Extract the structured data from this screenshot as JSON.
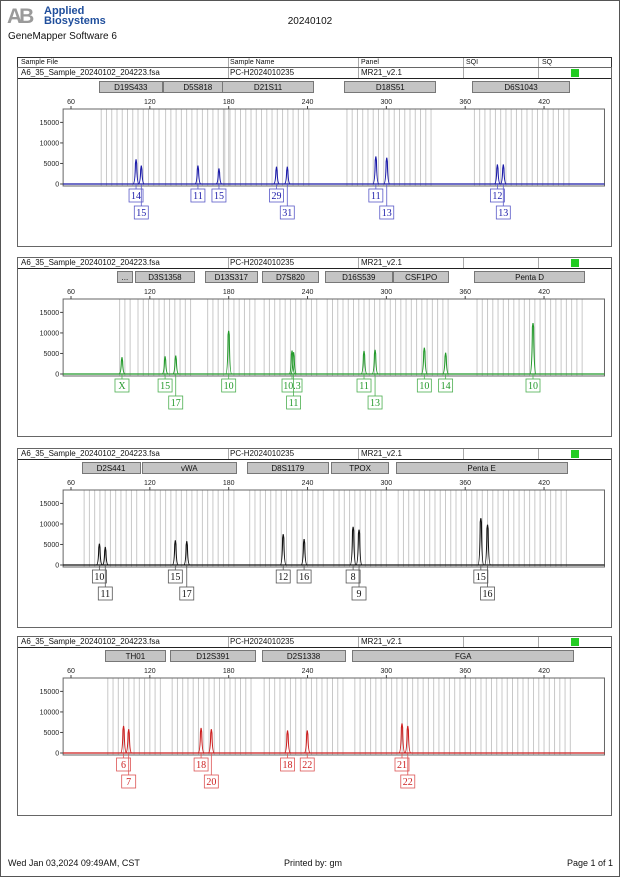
{
  "header": {
    "logo_mark": "AB",
    "logo_line1": "Applied",
    "logo_line2": "Biosystems",
    "software": "GeneMapper Software 6",
    "title": "20240102"
  },
  "columns": [
    "Sample File",
    "Sample Name",
    "Panel",
    "SQI",
    "SQ"
  ],
  "footer": {
    "date": "Wed Jan 03,2024 09:49AM, CST",
    "printed_by": "Printed by: gm",
    "page": "Page 1 of 1"
  },
  "colors": {
    "blue": "#1a1aa8",
    "green": "#22992a",
    "black": "#111111",
    "red": "#cc1f1f",
    "sq_ok": "#22cc22",
    "bin": "#c8c8c8"
  },
  "chart_data": [
    {
      "type": "line",
      "sample_file": "A6_35_Sample_20240102_204223.fsa",
      "sample_name": "PC-H2024010235",
      "panel": "MR21_v2.1",
      "dye": "blue",
      "xlim": [
        54,
        466
      ],
      "ylim": [
        0,
        18750
      ],
      "x_ticks": [
        60,
        120,
        180,
        240,
        300,
        360,
        420
      ],
      "y_ticks": [
        0,
        5000,
        10000,
        15000
      ],
      "markers": [
        {
          "name": "D19S433",
          "range": [
            81,
            130
          ]
        },
        {
          "name": "D5S818",
          "range": [
            130,
            183
          ]
        },
        {
          "name": "D21S11",
          "range": [
            175,
            245
          ]
        },
        {
          "name": "D18S51",
          "range": [
            268,
            338
          ]
        },
        {
          "name": "D6S1043",
          "range": [
            365,
            440
          ]
        }
      ],
      "peaks": [
        {
          "allele": "14",
          "size": 109.5,
          "height": 6000
        },
        {
          "allele": "15",
          "size": 113.5,
          "height": 4500
        },
        {
          "allele": "11",
          "size": 156.6,
          "height": 4500
        },
        {
          "allele": "15",
          "size": 172.6,
          "height": 3800
        },
        {
          "allele": "29",
          "size": 216.4,
          "height": 4200
        },
        {
          "allele": "31",
          "size": 224.6,
          "height": 4200
        },
        {
          "allele": "11",
          "size": 292,
          "height": 6700
        },
        {
          "allele": "13",
          "size": 300.3,
          "height": 6400
        },
        {
          "allele": "12",
          "size": 384.5,
          "height": 4750
        },
        {
          "allele": "13",
          "size": 389,
          "height": 4750
        }
      ]
    },
    {
      "type": "line",
      "sample_file": "A6_35_Sample_20240102_204223.fsa",
      "sample_name": "PC-H2024010235",
      "panel": "MR21_v2.1",
      "dye": "green",
      "xlim": [
        54,
        466
      ],
      "ylim": [
        0,
        18750
      ],
      "x_ticks": [
        60,
        120,
        180,
        240,
        300,
        360,
        420
      ],
      "y_ticks": [
        0,
        5000,
        10000,
        15000
      ],
      "markers": [
        {
          "name": "...",
          "range": [
            95,
            107
          ]
        },
        {
          "name": "D3S1358",
          "range": [
            109,
            154
          ]
        },
        {
          "name": "D13S317",
          "range": [
            162,
            202
          ]
        },
        {
          "name": "D7S820",
          "range": [
            205,
            249
          ]
        },
        {
          "name": "D16S539",
          "range": [
            253,
            305
          ]
        },
        {
          "name": "CSF1PO",
          "range": [
            305,
            348
          ]
        },
        {
          "name": "Penta D",
          "range": [
            367,
            451
          ]
        }
      ],
      "peaks": [
        {
          "allele": "X",
          "size": 98.8,
          "height": 4100
        },
        {
          "allele": "15",
          "size": 131.6,
          "height": 4300
        },
        {
          "allele": "17",
          "size": 139.7,
          "height": 4500
        },
        {
          "allele": "10",
          "size": 180,
          "height": 10500
        },
        {
          "allele": "10.3",
          "size": 228.2,
          "height": 5700
        },
        {
          "allele": "11",
          "size": 229.4,
          "height": 5300
        },
        {
          "allele": "11",
          "size": 283,
          "height": 5600
        },
        {
          "allele": "13",
          "size": 291.4,
          "height": 5900
        },
        {
          "allele": "10",
          "size": 328.9,
          "height": 6400
        },
        {
          "allele": "14",
          "size": 345.1,
          "height": 5200
        },
        {
          "allele": "10",
          "size": 411.6,
          "height": 12400
        }
      ]
    },
    {
      "type": "line",
      "sample_file": "A6_35_Sample_20240102_204223.fsa",
      "sample_name": "PC-H2024010235",
      "panel": "MR21_v2.1",
      "dye": "black",
      "xlim": [
        54,
        466
      ],
      "ylim": [
        0,
        18750
      ],
      "x_ticks": [
        60,
        120,
        180,
        240,
        300,
        360,
        420
      ],
      "y_ticks": [
        0,
        5000,
        10000,
        15000
      ],
      "markers": [
        {
          "name": "D2S441",
          "range": [
            68,
            113
          ]
        },
        {
          "name": "vWA",
          "range": [
            114,
            186
          ]
        },
        {
          "name": "D8S1179",
          "range": [
            194,
            256
          ]
        },
        {
          "name": "TPOX",
          "range": [
            258,
            302
          ]
        },
        {
          "name": "Penta E",
          "range": [
            307,
            438
          ]
        }
      ],
      "peaks": [
        {
          "allele": "10",
          "size": 81.6,
          "height": 5200
        },
        {
          "allele": "11",
          "size": 86.1,
          "height": 4400
        },
        {
          "allele": "15",
          "size": 139.4,
          "height": 6000
        },
        {
          "allele": "17",
          "size": 148.1,
          "height": 5800
        },
        {
          "allele": "12",
          "size": 221.5,
          "height": 7500
        },
        {
          "allele": "16",
          "size": 237.4,
          "height": 6300
        },
        {
          "allele": "8",
          "size": 274.7,
          "height": 9300
        },
        {
          "allele": "9",
          "size": 279.2,
          "height": 8600
        },
        {
          "allele": "15",
          "size": 371.9,
          "height": 11400
        },
        {
          "allele": "16",
          "size": 377,
          "height": 9800
        }
      ]
    },
    {
      "type": "line",
      "sample_file": "A6_35_Sample_20240102_204223.fsa",
      "sample_name": "PC-H2024010235",
      "panel": "MR21_v2.1",
      "dye": "red",
      "xlim": [
        54,
        466
      ],
      "ylim": [
        0,
        18750
      ],
      "x_ticks": [
        60,
        120,
        180,
        240,
        300,
        360,
        420
      ],
      "y_ticks": [
        0,
        5000,
        10000,
        15000
      ],
      "markers": [
        {
          "name": "TH01",
          "range": [
            86,
            132
          ]
        },
        {
          "name": "D12S391",
          "range": [
            135,
            201
          ]
        },
        {
          "name": "D2S1338",
          "range": [
            205,
            269
          ]
        },
        {
          "name": "FGA",
          "range": [
            274,
            443
          ]
        }
      ],
      "peaks": [
        {
          "allele": "6",
          "size": 100,
          "height": 6600
        },
        {
          "allele": "7",
          "size": 103.9,
          "height": 5800
        },
        {
          "allele": "18",
          "size": 159,
          "height": 6100
        },
        {
          "allele": "20",
          "size": 166.8,
          "height": 5800
        },
        {
          "allele": "18",
          "size": 224.8,
          "height": 5500
        },
        {
          "allele": "22",
          "size": 239.8,
          "height": 5500
        },
        {
          "allele": "21",
          "size": 311.9,
          "height": 7200
        },
        {
          "allele": "22",
          "size": 316.3,
          "height": 6600
        }
      ]
    }
  ]
}
